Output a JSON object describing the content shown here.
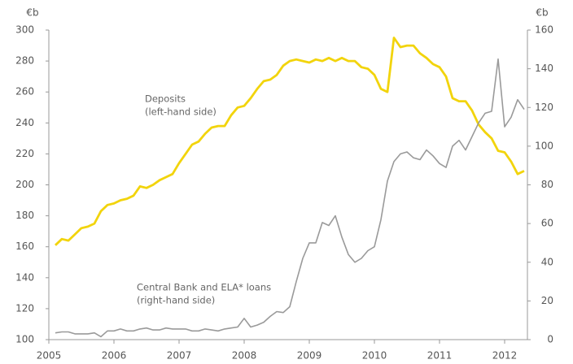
{
  "chart_data": {
    "type": "line",
    "y_unit": "€b",
    "y2_unit": "€b",
    "x": [
      2005.1,
      2005.2,
      2005.3,
      2005.4,
      2005.5,
      2005.6,
      2005.7,
      2005.8,
      2005.9,
      2006.0,
      2006.1,
      2006.2,
      2006.3,
      2006.4,
      2006.5,
      2006.6,
      2006.7,
      2006.8,
      2006.9,
      2007.0,
      2007.1,
      2007.2,
      2007.3,
      2007.4,
      2007.5,
      2007.6,
      2007.7,
      2007.8,
      2007.9,
      2008.0,
      2008.1,
      2008.2,
      2008.3,
      2008.4,
      2008.5,
      2008.6,
      2008.7,
      2008.8,
      2008.9,
      2009.0,
      2009.1,
      2009.2,
      2009.3,
      2009.4,
      2009.5,
      2009.6,
      2009.7,
      2009.8,
      2009.9,
      2010.0,
      2010.1,
      2010.2,
      2010.3,
      2010.4,
      2010.5,
      2010.6,
      2010.7,
      2010.8,
      2010.9,
      2011.0,
      2011.1,
      2011.2,
      2011.3,
      2011.4,
      2011.5,
      2011.6,
      2011.7,
      2011.8,
      2011.9,
      2012.0,
      2012.1,
      2012.2,
      2012.3
    ],
    "series": [
      {
        "name": "Deposits",
        "color": "#f2d40c",
        "axis": "y",
        "values": [
          161,
          165,
          164,
          168,
          172,
          173,
          175,
          183,
          187,
          188,
          190,
          191,
          193,
          199,
          198,
          200,
          203,
          205,
          207,
          214,
          220,
          226,
          228,
          233,
          237,
          238,
          238,
          245,
          250,
          251,
          256,
          262,
          267,
          268,
          271,
          277,
          280,
          281,
          280,
          279,
          281,
          280,
          282,
          280,
          282,
          280,
          280,
          276,
          275,
          271,
          262,
          260,
          295,
          289,
          290,
          290,
          285,
          282,
          278,
          276,
          270,
          256,
          254,
          254,
          248,
          239,
          234,
          230,
          222,
          221,
          215,
          207,
          209
        ]
      },
      {
        "name": "Central Bank and ELA* loans",
        "color": "#9a9a9a",
        "axis": "y2",
        "values": [
          3.5,
          4,
          4,
          3,
          3,
          3,
          3.5,
          1.5,
          4.5,
          4.5,
          5.5,
          4.5,
          4.5,
          5.5,
          6,
          5,
          5,
          6,
          5.5,
          5.5,
          5.5,
          4.5,
          4.5,
          5.5,
          5,
          4.5,
          5.5,
          6,
          6.5,
          11,
          6.5,
          7.5,
          9,
          12,
          14.5,
          14,
          17,
          30,
          42,
          50,
          50,
          60.5,
          59,
          64,
          53,
          44,
          40,
          42,
          46,
          48,
          62,
          82,
          92,
          96,
          97,
          94,
          93,
          98,
          95,
          91,
          89,
          100,
          103,
          98,
          105,
          112,
          117,
          118,
          145,
          110,
          115,
          124,
          119
        ]
      }
    ],
    "annotations": [
      {
        "lines": [
          "Deposits",
          "(left-hand side)"
        ],
        "series": 0
      },
      {
        "lines": [
          "Central Bank and ELA* loans",
          "(right-hand side)"
        ],
        "series": 1
      }
    ],
    "xlim": [
      2005,
      2012.35
    ],
    "xticks": [
      2005,
      2006,
      2007,
      2008,
      2009,
      2010,
      2011,
      2012
    ],
    "ylim": [
      100,
      300
    ],
    "yticks": [
      100,
      120,
      140,
      160,
      180,
      200,
      220,
      240,
      260,
      280,
      300
    ],
    "y2lim": [
      0,
      160
    ],
    "y2ticks": [
      0,
      20,
      40,
      60,
      80,
      100,
      120,
      140,
      160
    ],
    "grid": false
  }
}
